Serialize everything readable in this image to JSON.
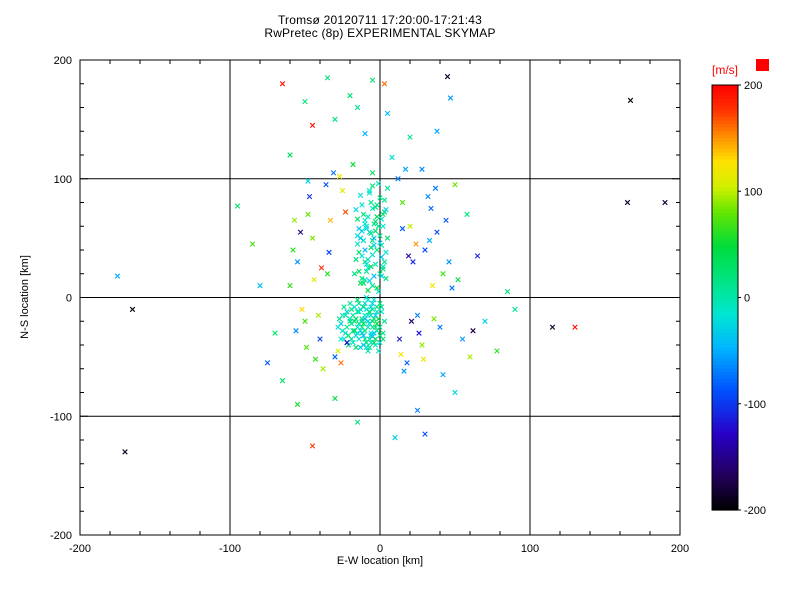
{
  "chart_data": {
    "type": "scatter",
    "title": "Tromsø 20120711 17:20:00-17:21:43",
    "subtitle": "RwPretec (8p) EXPERIMENTAL SKYMAP",
    "xlabel": "E-W location [km]",
    "ylabel": "N-S location [km]",
    "xlim": [
      -200,
      200
    ],
    "ylim": [
      -200,
      200
    ],
    "x_ticks": [
      -200,
      -100,
      0,
      100,
      200
    ],
    "y_ticks": [
      -200,
      -100,
      0,
      100,
      200
    ],
    "minor_tick_step": 20,
    "grid": true,
    "marker": "x",
    "axis_color": "#000000",
    "background": "#ffffff",
    "colorbar": {
      "label": "[m/s]",
      "label_color": "#ff0000",
      "min": -200,
      "max": 200,
      "ticks": [
        200,
        100,
        0,
        -100,
        -200
      ]
    },
    "colormap_stops": [
      [
        0.0,
        "#000000"
      ],
      [
        0.08,
        "#22005a"
      ],
      [
        0.18,
        "#2800c8"
      ],
      [
        0.28,
        "#0050ff"
      ],
      [
        0.38,
        "#00b4ff"
      ],
      [
        0.46,
        "#00e6d2"
      ],
      [
        0.52,
        "#00e696"
      ],
      [
        0.62,
        "#00dc3c"
      ],
      [
        0.7,
        "#64e600"
      ],
      [
        0.76,
        "#d2f000"
      ],
      [
        0.82,
        "#ffe100"
      ],
      [
        0.88,
        "#ff8c00"
      ],
      [
        0.94,
        "#ff3200"
      ],
      [
        1.0,
        "#ff0000"
      ]
    ],
    "points": [
      [
        -5,
        -10,
        5
      ],
      [
        -8,
        -15,
        -12
      ],
      [
        -2,
        -8,
        18
      ],
      [
        -12,
        -20,
        -5
      ],
      [
        0,
        -25,
        8
      ],
      [
        -6,
        -30,
        -20
      ],
      [
        -15,
        -12,
        10
      ],
      [
        -20,
        -18,
        -8
      ],
      [
        -10,
        -35,
        15
      ],
      [
        -3,
        -40,
        -15
      ],
      [
        2,
        -35,
        22
      ],
      [
        -7,
        -22,
        -25
      ],
      [
        -18,
        -28,
        5
      ],
      [
        -25,
        -15,
        -10
      ],
      [
        -14,
        -5,
        12
      ],
      [
        -9,
        0,
        -18
      ],
      [
        -4,
        -18,
        25
      ],
      [
        1,
        -12,
        -6
      ],
      [
        -11,
        -8,
        30
      ],
      [
        -16,
        -32,
        -22
      ],
      [
        -22,
        -25,
        8
      ],
      [
        -6,
        -38,
        -12
      ],
      [
        0,
        -5,
        15
      ],
      [
        -13,
        -42,
        -28
      ],
      [
        -19,
        -10,
        20
      ],
      [
        -8,
        -45,
        -5
      ],
      [
        -2,
        -28,
        10
      ],
      [
        -24,
        -35,
        -15
      ],
      [
        -17,
        -20,
        28
      ],
      [
        -5,
        -33,
        -35
      ],
      [
        3,
        -20,
        12
      ],
      [
        -10,
        -15,
        -8
      ],
      [
        -21,
        -40,
        18
      ],
      [
        -15,
        -25,
        -20
      ],
      [
        -7,
        -12,
        35
      ],
      [
        -1,
        -45,
        -10
      ],
      [
        -12,
        -30,
        5
      ],
      [
        -26,
        -22,
        -30
      ],
      [
        -9,
        -38,
        22
      ],
      [
        -4,
        -2,
        -15
      ],
      [
        -18,
        -15,
        8
      ],
      [
        -23,
        -30,
        -12
      ],
      [
        -11,
        -22,
        40
      ],
      [
        -6,
        -8,
        -25
      ],
      [
        2,
        -30,
        15
      ],
      [
        -14,
        -35,
        -18
      ],
      [
        -20,
        -5,
        10
      ],
      [
        -3,
        -15,
        -40
      ],
      [
        -16,
        -42,
        25
      ],
      [
        -8,
        -25,
        -5
      ],
      [
        -27,
        -18,
        12
      ],
      [
        -13,
        -10,
        -22
      ],
      [
        -5,
        -20,
        30
      ],
      [
        0,
        -38,
        -8
      ],
      [
        -10,
        -28,
        18
      ],
      [
        -22,
        -12,
        -28
      ],
      [
        -7,
        -35,
        8
      ],
      [
        -17,
        -8,
        -15
      ],
      [
        -2,
        -22,
        45
      ],
      [
        -25,
        -28,
        -10
      ],
      [
        -12,
        -18,
        20
      ],
      [
        -4,
        -30,
        -32
      ],
      [
        -19,
        -22,
        5
      ],
      [
        -9,
        -42,
        -18
      ],
      [
        -15,
        -2,
        28
      ],
      [
        -6,
        -15,
        -12
      ],
      [
        1,
        -8,
        10
      ],
      [
        -11,
        -32,
        -45
      ],
      [
        -24,
        -8,
        15
      ],
      [
        -8,
        -20,
        -20
      ],
      [
        -3,
        -35,
        32
      ],
      [
        -14,
        -12,
        -8
      ],
      [
        -21,
        -32,
        22
      ],
      [
        -10,
        -5,
        -30
      ],
      [
        -5,
        -25,
        8
      ],
      [
        -18,
        -38,
        -15
      ],
      [
        -1,
        -18,
        38
      ],
      [
        -13,
        -28,
        -25
      ],
      [
        -7,
        -42,
        12
      ],
      [
        -28,
        -25,
        -18
      ],
      [
        -16,
        -18,
        28
      ],
      [
        -2,
        -12,
        -10
      ],
      [
        -12,
        -25,
        15
      ],
      [
        -6,
        -32,
        -38
      ],
      [
        -20,
        -20,
        20
      ],
      [
        -9,
        -10,
        -15
      ],
      [
        -4,
        -38,
        25
      ],
      [
        -15,
        -30,
        -22
      ],
      [
        -23,
        -15,
        10
      ],
      [
        -11,
        -40,
        -30
      ],
      [
        -17,
        -28,
        35
      ],
      [
        -8,
        -2,
        -12
      ],
      [
        0,
        -32,
        18
      ],
      [
        -26,
        -35,
        -20
      ],
      [
        -14,
        -22,
        8
      ],
      [
        -5,
        -5,
        -28
      ],
      [
        -19,
        -35,
        15
      ],
      [
        -10,
        -18,
        -42
      ],
      [
        -3,
        -25,
        22
      ],
      [
        -22,
        -38,
        -15
      ],
      [
        -5,
        10,
        12
      ],
      [
        -10,
        15,
        -8
      ],
      [
        0,
        20,
        25
      ],
      [
        -8,
        25,
        -15
      ],
      [
        3,
        30,
        8
      ],
      [
        -12,
        35,
        -20
      ],
      [
        -2,
        40,
        18
      ],
      [
        -15,
        45,
        -10
      ],
      [
        5,
        50,
        30
      ],
      [
        -7,
        55,
        -25
      ],
      [
        -1,
        60,
        15
      ],
      [
        -10,
        65,
        -12
      ],
      [
        2,
        70,
        22
      ],
      [
        -5,
        75,
        -18
      ],
      [
        -13,
        12,
        35
      ],
      [
        1,
        18,
        -30
      ],
      [
        -9,
        22,
        10
      ],
      [
        -3,
        28,
        -8
      ],
      [
        -16,
        32,
        20
      ],
      [
        4,
        38,
        -15
      ],
      [
        -6,
        42,
        28
      ],
      [
        -11,
        48,
        -22
      ],
      [
        0,
        52,
        12
      ],
      [
        -14,
        58,
        -35
      ],
      [
        -4,
        62,
        18
      ],
      [
        -8,
        68,
        -10
      ],
      [
        3,
        72,
        25
      ],
      [
        -12,
        78,
        -15
      ],
      [
        -2,
        8,
        40
      ],
      [
        -7,
        14,
        -28
      ],
      [
        -17,
        20,
        15
      ],
      [
        2,
        26,
        -12
      ],
      [
        -10,
        30,
        32
      ],
      [
        -5,
        36,
        -20
      ],
      [
        1,
        44,
        10
      ],
      [
        -13,
        50,
        -38
      ],
      [
        -3,
        56,
        22
      ],
      [
        -9,
        60,
        -15
      ],
      [
        -15,
        66,
        28
      ],
      [
        4,
        74,
        -25
      ],
      [
        -6,
        80,
        12
      ],
      [
        -1,
        5,
        -18
      ],
      [
        -11,
        12,
        30
      ],
      [
        -4,
        18,
        -42
      ],
      [
        2,
        24,
        15
      ],
      [
        -8,
        32,
        -10
      ],
      [
        -14,
        38,
        25
      ],
      [
        0,
        46,
        -30
      ],
      [
        -6,
        54,
        18
      ],
      [
        -10,
        62,
        -15
      ],
      [
        -2,
        68,
        35
      ],
      [
        -16,
        74,
        -20
      ],
      [
        3,
        82,
        10
      ],
      [
        -7,
        88,
        -12
      ],
      [
        -12,
        16,
        22
      ],
      [
        1,
        34,
        -35
      ],
      [
        -5,
        48,
        15
      ],
      [
        -9,
        58,
        -25
      ],
      [
        -3,
        76,
        28
      ],
      [
        -13,
        86,
        -18
      ],
      [
        5,
        92,
        12
      ],
      [
        -1,
        96,
        -10
      ],
      [
        -8,
        6,
        45
      ],
      [
        -4,
        44,
        -28
      ],
      [
        -11,
        70,
        20
      ],
      [
        2,
        60,
        -15
      ],
      [
        -6,
        26,
        38
      ],
      [
        -15,
        52,
        -22
      ],
      [
        0,
        84,
        15
      ],
      [
        -10,
        40,
        -45
      ],
      [
        -3,
        64,
        25
      ],
      [
        -7,
        90,
        -12
      ],
      [
        4,
        16,
        18
      ],
      [
        -12,
        56,
        -30
      ],
      [
        -2,
        78,
        10
      ],
      [
        -9,
        28,
        -20
      ],
      [
        -5,
        94,
        22
      ],
      [
        1,
        66,
        -15
      ],
      [
        -14,
        22,
        32
      ],
      [
        -4,
        50,
        -35
      ],
      [
        -35,
        20,
        60
      ],
      [
        25,
        -15,
        -70
      ],
      [
        -45,
        50,
        85
      ],
      [
        30,
        40,
        -90
      ],
      [
        -50,
        -20,
        70
      ],
      [
        20,
        60,
        100
      ],
      [
        -30,
        -50,
        -80
      ],
      [
        35,
        10,
        120
      ],
      [
        -55,
        30,
        -60
      ],
      [
        15,
        80,
        75
      ],
      [
        -40,
        -35,
        -100
      ],
      [
        28,
        -40,
        90
      ],
      [
        -60,
        10,
        65
      ],
      [
        40,
        -25,
        -75
      ],
      [
        -25,
        90,
        110
      ],
      [
        18,
        -55,
        -85
      ],
      [
        -48,
        70,
        80
      ],
      [
        32,
        85,
        -65
      ],
      [
        -38,
        -60,
        95
      ],
      [
        22,
        30,
        -110
      ],
      [
        -52,
        -10,
        130
      ],
      [
        12,
        100,
        -70
      ],
      [
        -28,
        -45,
        105
      ],
      [
        38,
        55,
        -95
      ],
      [
        -58,
        40,
        60
      ],
      [
        26,
        -30,
        -120
      ],
      [
        -33,
        65,
        140
      ],
      [
        16,
        -62,
        -60
      ],
      [
        -44,
        15,
        115
      ],
      [
        34,
        75,
        -80
      ],
      [
        -22,
        -38,
        -130
      ],
      [
        42,
        20,
        70
      ],
      [
        -36,
        95,
        -90
      ],
      [
        14,
        -48,
        125
      ],
      [
        -56,
        -28,
        -65
      ],
      [
        24,
        45,
        150
      ],
      [
        -31,
        105,
        -75
      ],
      [
        36,
        -18,
        85
      ],
      [
        -47,
        85,
        -105
      ],
      [
        19,
        35,
        -140
      ],
      [
        -26,
        -55,
        160
      ],
      [
        44,
        65,
        -85
      ],
      [
        -41,
        -15,
        95
      ],
      [
        17,
        108,
        -55
      ],
      [
        -53,
        55,
        -150
      ],
      [
        29,
        -52,
        115
      ],
      [
        -34,
        38,
        -95
      ],
      [
        46,
        30,
        -60
      ],
      [
        -23,
        72,
        170
      ],
      [
        13,
        -35,
        -115
      ],
      [
        -49,
        -42,
        75
      ],
      [
        37,
        92,
        -70
      ],
      [
        -39,
        25,
        180
      ],
      [
        21,
        -20,
        -160
      ],
      [
        -57,
        65,
        90
      ],
      [
        33,
        48,
        -50
      ],
      [
        -27,
        102,
        120
      ],
      [
        15,
        58,
        -85
      ],
      [
        -43,
        -52,
        65
      ],
      [
        48,
        8,
        -75
      ],
      [
        -175,
        18,
        -50
      ],
      [
        -165,
        -10,
        -195
      ],
      [
        -170,
        -130,
        -190
      ],
      [
        165,
        80,
        -185
      ],
      [
        190,
        80,
        -180
      ],
      [
        130,
        -25,
        195
      ],
      [
        115,
        -25,
        -190
      ],
      [
        85,
        5,
        20
      ],
      [
        -95,
        77,
        30
      ],
      [
        -65,
        180,
        190
      ],
      [
        -35,
        185,
        15
      ],
      [
        -5,
        183,
        25
      ],
      [
        3,
        180,
        160
      ],
      [
        -20,
        170,
        20
      ],
      [
        -15,
        160,
        10
      ],
      [
        -30,
        150,
        18
      ],
      [
        5,
        155,
        -45
      ],
      [
        -50,
        165,
        22
      ],
      [
        47,
        168,
        -60
      ],
      [
        45,
        186,
        -185
      ],
      [
        -45,
        145,
        195
      ],
      [
        38,
        140,
        -55
      ],
      [
        167,
        166,
        -195
      ],
      [
        -45,
        -125,
        175
      ],
      [
        30,
        -115,
        -90
      ],
      [
        55,
        -35,
        -60
      ],
      [
        60,
        -50,
        95
      ],
      [
        70,
        -20,
        -30
      ],
      [
        52,
        15,
        40
      ],
      [
        65,
        35,
        -110
      ],
      [
        78,
        -45,
        60
      ],
      [
        -70,
        -30,
        25
      ],
      [
        -80,
        10,
        -40
      ],
      [
        -85,
        45,
        70
      ],
      [
        -75,
        -55,
        -85
      ],
      [
        58,
        70,
        15
      ],
      [
        -65,
        -70,
        30
      ],
      [
        50,
        -80,
        -25
      ],
      [
        -55,
        -90,
        55
      ],
      [
        25,
        -95,
        -70
      ],
      [
        -15,
        -105,
        20
      ],
      [
        10,
        -118,
        -35
      ],
      [
        -30,
        -85,
        45
      ],
      [
        42,
        -65,
        -55
      ],
      [
        90,
        -10,
        10
      ],
      [
        -5,
        105,
        30
      ],
      [
        8,
        118,
        -20
      ],
      [
        -18,
        112,
        50
      ],
      [
        28,
        108,
        -65
      ],
      [
        50,
        95,
        80
      ],
      [
        -48,
        98,
        -30
      ],
      [
        62,
        -28,
        -175
      ],
      [
        20,
        135,
        15
      ],
      [
        -10,
        138,
        -48
      ],
      [
        -60,
        120,
        35
      ]
    ]
  }
}
